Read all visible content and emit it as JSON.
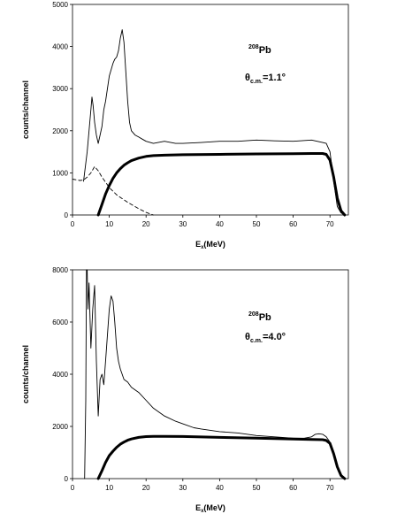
{
  "chart_data": [
    {
      "type": "line",
      "xlabel_main": "E",
      "xlabel_sub": "x",
      "xlabel_tail": "(MeV)",
      "ylabel": "counts/channel",
      "xlim": [
        0,
        75
      ],
      "ylim": [
        0,
        5000
      ],
      "x_ticks": [
        0,
        10,
        20,
        30,
        40,
        50,
        60,
        70
      ],
      "y_ticks": [
        0,
        1000,
        2000,
        3000,
        4000,
        5000
      ],
      "annotation": {
        "nucleus_mass": "208",
        "nucleus": "Pb",
        "theta": "θ",
        "theta_sub": "c.m.",
        "angle_value": "=1.1°"
      },
      "series": [
        {
          "style": "thin",
          "x": [
            3,
            4,
            4.5,
            5,
            5.3,
            5.6,
            6,
            6.5,
            7,
            7.5,
            8,
            8.5,
            9,
            10,
            11,
            11.5,
            12,
            12.5,
            13,
            13.5,
            14,
            14.5,
            15,
            15.5,
            16,
            17,
            18,
            19,
            20,
            22,
            25,
            28,
            30,
            35,
            40,
            45,
            50,
            55,
            60,
            65,
            68,
            69,
            70,
            71,
            72,
            73,
            74
          ],
          "y": [
            800,
            1500,
            2000,
            2500,
            2800,
            2600,
            2200,
            1900,
            1700,
            1900,
            2100,
            2500,
            2700,
            3300,
            3600,
            3700,
            3750,
            3900,
            4200,
            4400,
            4100,
            3400,
            2700,
            2200,
            2000,
            1900,
            1850,
            1800,
            1750,
            1700,
            1750,
            1700,
            1700,
            1720,
            1750,
            1750,
            1780,
            1760,
            1750,
            1780,
            1720,
            1700,
            1500,
            800,
            200,
            50,
            0
          ]
        },
        {
          "style": "dashed",
          "x": [
            0,
            2,
            3,
            4,
            5,
            6,
            7,
            8,
            9,
            10,
            12,
            15,
            18,
            20,
            22
          ],
          "y": [
            850,
            820,
            830,
            900,
            1000,
            1150,
            1050,
            900,
            780,
            650,
            480,
            300,
            150,
            60,
            0
          ]
        },
        {
          "style": "thick",
          "x": [
            7,
            8,
            9,
            10,
            11,
            12,
            13,
            14,
            15,
            16,
            18,
            20,
            22,
            25,
            30,
            40,
            50,
            60,
            65,
            68,
            69,
            70,
            71,
            72,
            73,
            74
          ],
          "y": [
            0,
            250,
            500,
            700,
            870,
            1000,
            1100,
            1180,
            1240,
            1290,
            1350,
            1390,
            1410,
            1420,
            1430,
            1440,
            1450,
            1455,
            1460,
            1460,
            1440,
            1300,
            900,
            400,
            100,
            0
          ]
        }
      ]
    },
    {
      "type": "line",
      "xlabel_main": "E",
      "xlabel_sub": "x",
      "xlabel_tail": "(MeV)",
      "ylabel": "counts/channel",
      "xlim": [
        0,
        75
      ],
      "ylim": [
        0,
        8000
      ],
      "x_ticks": [
        0,
        10,
        20,
        30,
        40,
        50,
        60,
        70
      ],
      "y_ticks": [
        0,
        2000,
        4000,
        6000,
        8000
      ],
      "annotation": {
        "nucleus_mass": "208",
        "nucleus": "Pb",
        "theta": "θ",
        "theta_sub": "c.m.",
        "angle_value": "=4.0°"
      },
      "series": [
        {
          "style": "thin",
          "x": [
            3.3,
            3.6,
            3.8,
            4,
            4.2,
            4.5,
            5,
            5.5,
            6,
            6.5,
            7,
            7.5,
            8,
            8.5,
            9,
            9.5,
            10,
            10.5,
            11,
            11.5,
            12,
            12.5,
            13,
            14,
            15,
            16,
            18,
            20,
            22,
            25,
            28,
            30,
            33,
            35,
            40,
            45,
            50,
            55,
            60,
            63,
            65,
            66,
            67,
            68,
            69,
            70,
            71,
            72,
            73,
            74
          ],
          "y": [
            0,
            3000,
            8000,
            8000,
            6500,
            7500,
            5000,
            6500,
            7400,
            4500,
            2400,
            3800,
            4000,
            3600,
            4500,
            5500,
            6500,
            7000,
            6800,
            6000,
            5000,
            4500,
            4200,
            3800,
            3700,
            3500,
            3300,
            3000,
            2700,
            2400,
            2200,
            2100,
            1950,
            1900,
            1800,
            1750,
            1650,
            1600,
            1550,
            1550,
            1600,
            1700,
            1720,
            1700,
            1600,
            1400,
            900,
            400,
            100,
            0
          ]
        },
        {
          "style": "thick",
          "x": [
            7,
            8,
            9,
            10,
            11,
            12,
            13,
            14,
            15,
            16,
            18,
            20,
            22,
            25,
            30,
            40,
            50,
            60,
            65,
            68,
            69,
            70,
            71,
            72,
            73,
            74
          ],
          "y": [
            0,
            300,
            620,
            880,
            1050,
            1200,
            1320,
            1400,
            1470,
            1520,
            1580,
            1610,
            1620,
            1620,
            1615,
            1580,
            1550,
            1520,
            1500,
            1490,
            1460,
            1350,
            950,
            450,
            120,
            0
          ]
        }
      ]
    }
  ]
}
